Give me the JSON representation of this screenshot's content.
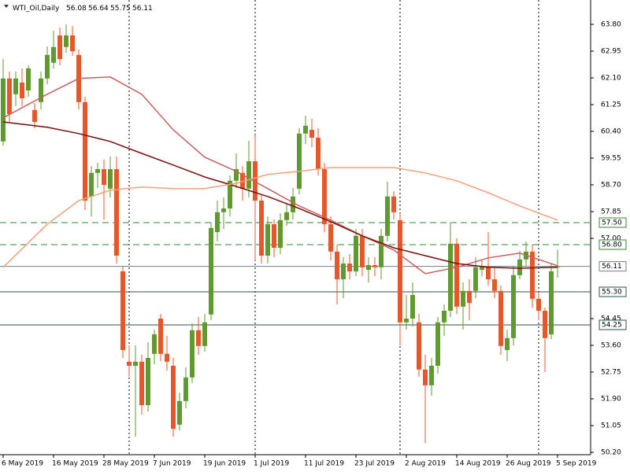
{
  "chart_data": {
    "type": "candlestick",
    "title": "WTI_Oil,Daily",
    "header_ohlc": [
      56.08,
      56.64,
      55.75,
      56.11
    ],
    "categories": [
      "6 May 2019",
      null,
      null,
      null,
      null,
      null,
      null,
      null,
      "16 May 2019",
      null,
      null,
      null,
      null,
      null,
      null,
      null,
      "28 May 2019",
      null,
      null,
      null,
      null,
      null,
      null,
      null,
      "7 Jun 2019",
      null,
      null,
      null,
      null,
      null,
      null,
      null,
      "19 Jun 2019",
      null,
      null,
      null,
      null,
      null,
      null,
      null,
      "1 Jul 2019",
      null,
      null,
      null,
      null,
      null,
      null,
      null,
      "11 Jul 2019",
      null,
      null,
      null,
      null,
      null,
      null,
      null,
      "23 Jul 2019",
      null,
      null,
      null,
      null,
      null,
      null,
      null,
      "2 Aug 2019",
      null,
      null,
      null,
      null,
      null,
      null,
      null,
      "14 Aug 2019",
      null,
      null,
      null,
      null,
      null,
      null,
      null,
      "26 Aug 2019",
      null,
      null,
      null,
      null,
      null,
      null,
      null,
      "5 Sep 2019"
    ],
    "open": [
      60.08,
      62.08,
      61.58,
      61.95,
      61.7,
      61.08,
      61.33,
      62.08,
      62.58,
      63.45,
      63.08,
      63.45,
      62.83,
      61.33,
      58.33,
      59.08,
      59.2,
      58.58,
      59.2,
      55.95,
      53.08,
      52.95,
      53.08,
      51.7,
      53.33,
      54.45,
      53.33,
      52.95,
      51.08,
      51.83,
      52.58,
      54.08,
      53.58,
      54.58,
      57.2,
      57.83,
      57.95,
      58.83,
      59.08,
      58.58,
      59.45,
      58.2,
      56.45,
      57.45,
      56.7,
      57.58,
      57.83,
      58.58,
      60.33,
      60.45,
      60.2,
      59.2,
      57.45,
      56.58,
      55.7,
      56.2,
      55.95,
      57.08,
      56.0,
      56.15,
      56.08,
      57.08,
      58.33,
      57.58,
      54.33,
      54.45,
      54.33,
      52.83,
      52.33,
      52.95,
      54.33,
      54.7,
      56.83,
      54.83,
      55.33,
      55.33,
      56.0,
      56.08,
      55.7,
      55.33,
      53.45,
      53.83,
      55.83,
      56.33,
      56.58,
      55.08,
      54.7,
      53.95,
      56.08
    ],
    "high": [
      62.7,
      62.3,
      62.3,
      62.4,
      62.5,
      61.3,
      62.3,
      63.1,
      63.6,
      63.7,
      63.8,
      63.75,
      63.0,
      61.5,
      59.3,
      59.4,
      59.5,
      59.6,
      59.6,
      56.1,
      53.6,
      53.6,
      53.3,
      53.7,
      54.1,
      54.6,
      53.9,
      53.2,
      52.1,
      52.9,
      54.3,
      54.5,
      54.6,
      57.5,
      58.2,
      58.3,
      59.0,
      59.7,
      59.3,
      60.1,
      60.3,
      58.4,
      57.7,
      57.6,
      57.8,
      58.1,
      58.6,
      60.5,
      60.9,
      60.8,
      60.5,
      59.4,
      57.7,
      56.8,
      56.4,
      56.5,
      57.3,
      57.3,
      56.4,
      56.4,
      57.3,
      58.8,
      58.5,
      57.8,
      55.2,
      55.6,
      54.6,
      53.3,
      53.2,
      54.5,
      54.9,
      57.5,
      57.0,
      55.6,
      55.7,
      56.4,
      56.3,
      57.2,
      56.1,
      55.5,
      54.1,
      56.1,
      56.6,
      56.9,
      56.8,
      55.3,
      54.8,
      56.2,
      56.64
    ],
    "low": [
      59.95,
      60.7,
      61.2,
      61.2,
      61.5,
      60.5,
      61.1,
      61.9,
      62.4,
      62.5,
      62.9,
      62.8,
      61.1,
      57.9,
      57.7,
      58.6,
      57.6,
      58.3,
      56.2,
      53.2,
      52.6,
      50.7,
      51.4,
      51.5,
      53.0,
      53.1,
      52.8,
      50.7,
      50.9,
      51.6,
      52.4,
      53.3,
      53.4,
      54.4,
      56.9,
      57.3,
      57.7,
      58.6,
      58.2,
      58.3,
      56.3,
      56.2,
      56.2,
      56.4,
      56.5,
      57.4,
      57.6,
      58.4,
      60.0,
      59.9,
      59.0,
      57.2,
      56.3,
      54.9,
      55.1,
      55.7,
      55.8,
      55.8,
      55.6,
      55.8,
      55.7,
      56.9,
      57.6,
      53.6,
      54.1,
      54.2,
      52.6,
      50.5,
      52.0,
      52.7,
      53.9,
      54.5,
      54.6,
      54.1,
      54.4,
      55.1,
      55.8,
      55.5,
      55.1,
      53.3,
      53.1,
      53.6,
      55.7,
      56.1,
      54.8,
      54.4,
      52.75,
      53.8,
      55.75
    ],
    "close": [
      62.08,
      60.95,
      62.08,
      61.45,
      62.4,
      60.7,
      62.08,
      62.83,
      63.08,
      62.7,
      63.45,
      62.95,
      61.33,
      58.2,
      59.08,
      59.2,
      58.7,
      59.2,
      56.45,
      53.45,
      52.95,
      53.08,
      51.7,
      53.2,
      53.95,
      53.33,
      53.08,
      50.95,
      51.83,
      52.58,
      54.08,
      53.58,
      54.33,
      57.33,
      57.83,
      57.95,
      58.83,
      59.2,
      58.58,
      59.45,
      58.2,
      56.45,
      57.45,
      56.7,
      57.58,
      57.83,
      58.33,
      60.33,
      60.58,
      60.2,
      59.2,
      57.45,
      56.58,
      55.7,
      56.2,
      55.95,
      57.08,
      56.08,
      56.15,
      56.08,
      57.08,
      58.33,
      57.83,
      54.33,
      54.45,
      55.2,
      52.83,
      52.33,
      52.95,
      54.33,
      54.7,
      56.83,
      54.83,
      55.33,
      54.95,
      56.08,
      56.1,
      55.7,
      55.33,
      53.58,
      53.83,
      55.83,
      56.33,
      56.58,
      55.08,
      54.7,
      53.83,
      55.95,
      56.11
    ],
    "bull_color": "#5f9a2e",
    "bear_color": "#e8562c",
    "ma_x": [
      0,
      7,
      12,
      17,
      22,
      27,
      32,
      37,
      42,
      47,
      52,
      57,
      62,
      67,
      72,
      77,
      82,
      88
    ],
    "lines": [
      {
        "color": "#c9605e",
        "values": [
          60.83,
          61.58,
          62.08,
          62.13,
          61.58,
          60.45,
          59.58,
          59.13,
          58.58,
          58.03,
          57.58,
          57.08,
          56.63,
          55.88,
          56.08,
          56.38,
          56.53,
          56.13
        ]
      },
      {
        "color": "#7a0c0c",
        "values": [
          60.7,
          60.53,
          60.33,
          60.08,
          59.7,
          59.33,
          58.95,
          58.65,
          58.33,
          57.95,
          57.53,
          57.08,
          56.7,
          56.45,
          56.2,
          56.08,
          56.05,
          56.08
        ]
      },
      {
        "color": "#f4a07a",
        "values": [
          56.08,
          57.45,
          58.2,
          58.53,
          58.63,
          58.58,
          58.58,
          58.75,
          59.03,
          59.13,
          59.25,
          59.25,
          59.25,
          59.08,
          58.83,
          58.45,
          58.03,
          57.58
        ]
      }
    ],
    "ylim": [
      50.0,
      64.575
    ],
    "yticks": [
      {
        "value": 63.8,
        "label": "63.80"
      },
      {
        "value": 62.95,
        "label": "62.95"
      },
      {
        "value": 62.1,
        "label": "62.10"
      },
      {
        "value": 61.25,
        "label": "61.25"
      },
      {
        "value": 60.4,
        "label": "60.40"
      },
      {
        "value": 59.55,
        "label": "59.55"
      },
      {
        "value": 58.7,
        "label": "58.70"
      },
      {
        "value": 57.85,
        "label": "57.85"
      },
      {
        "value": 57.0,
        "label": "57.00"
      },
      {
        "value": 54.45,
        "label": "54.45"
      },
      {
        "value": 53.6,
        "label": "53.60"
      },
      {
        "value": 52.75,
        "label": "52.75"
      },
      {
        "value": 51.9,
        "label": "51.90"
      },
      {
        "value": 51.05,
        "label": "51.05"
      },
      {
        "value": 50.2,
        "label": "50.20"
      }
    ],
    "levels": [
      {
        "value": 57.5,
        "label": "57.50",
        "color": "#2e8b2e",
        "dashed": true
      },
      {
        "value": 56.8,
        "label": "56.80",
        "color": "#2e8b2e",
        "dashed": true
      },
      {
        "value": 56.11,
        "label": "56.11",
        "color": "#708090",
        "dashed": false
      },
      {
        "value": 55.3,
        "label": "55.30",
        "color": "#2f4f4f",
        "dashed": false
      },
      {
        "value": 54.25,
        "label": "54.25",
        "color": "#2f4f4f",
        "dashed": false
      }
    ]
  }
}
